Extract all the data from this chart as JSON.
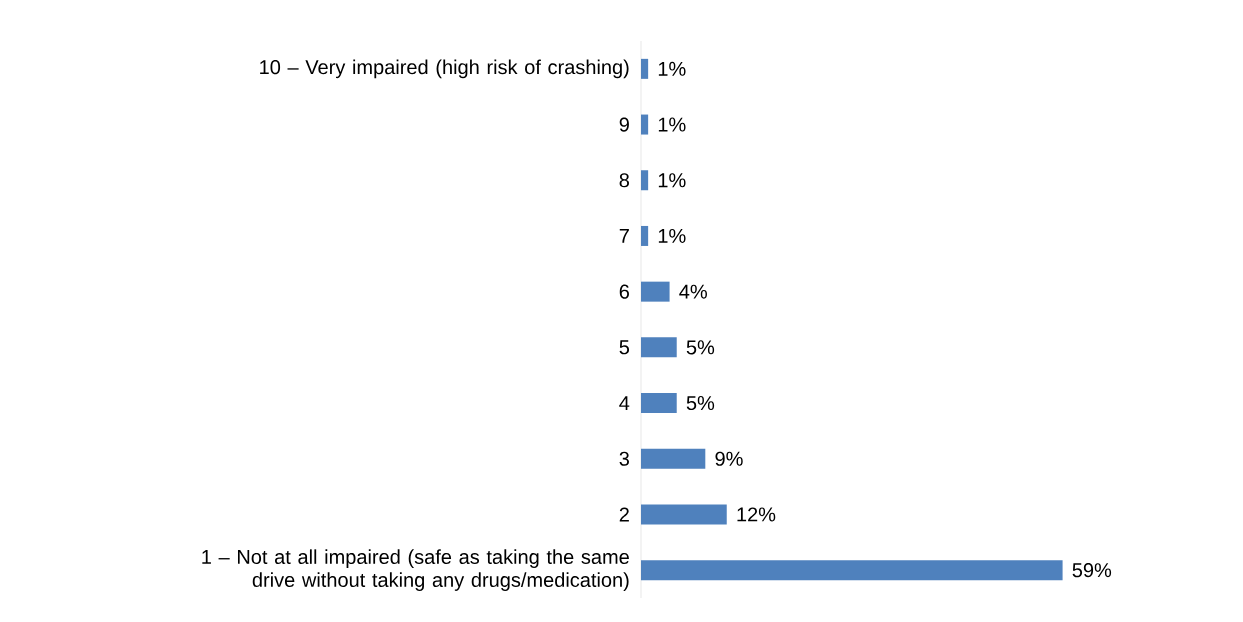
{
  "chart_data": {
    "type": "bar",
    "orientation": "horizontal",
    "categories": [
      "10 – Very impaired (high risk of crashing)",
      "9",
      "8",
      "7",
      "6",
      "5",
      "4",
      "3",
      "2",
      "1 – Not at all impaired (safe as taking the same drive without taking any drugs/medication)"
    ],
    "values": [
      1,
      1,
      1,
      1,
      4,
      5,
      5,
      9,
      12,
      59
    ],
    "value_labels": [
      "1%",
      "1%",
      "1%",
      "1%",
      "4%",
      "5%",
      "5%",
      "9%",
      "12%",
      "59%"
    ],
    "color": "#4f81bd"
  }
}
